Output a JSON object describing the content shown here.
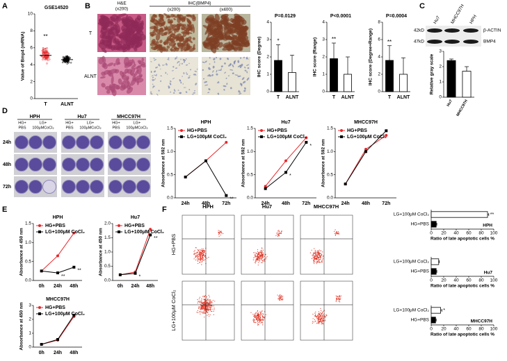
{
  "panel_labels": [
    "A",
    "B",
    "C",
    "D",
    "E",
    "F"
  ],
  "ihc": {
    "he_title": "H&E",
    "he_mag": "(x200)",
    "ihc_title": "IHC(BMP4)",
    "ihc_mags": [
      "(x200)",
      "(x400)"
    ],
    "rows": [
      "T",
      "ALNT"
    ]
  },
  "blot": {
    "lanes": [
      "Hu7",
      "MHCC97H",
      "HPH"
    ],
    "bands": [
      {
        "size": "42kD",
        "name": "β-ACTIN"
      },
      {
        "size": "47kD",
        "name": "BMP4"
      }
    ]
  },
  "crystal": {
    "cell_lines": [
      "HPH",
      "Hu7",
      "MHCC97H"
    ],
    "conditions": [
      [
        "HG+",
        "PBS"
      ],
      [
        "LG+",
        "100μMCoCl₂"
      ]
    ],
    "times": [
      "24h",
      "48h",
      "72h"
    ]
  },
  "flow": {
    "cell_lines": [
      "HPH",
      "Hu7",
      "MHCC97H"
    ],
    "rows": [
      "HG+PBS",
      "LG+100μM CoCl₂"
    ]
  },
  "chart_data": [
    {
      "type": "strip",
      "title": "GSE14520",
      "ylabel": "Value of Bmp4 (mRNA)",
      "categories": [
        "T",
        "ALNT"
      ],
      "values": [
        5.1,
        4.6
      ],
      "colors": [
        "#e8262a",
        "#000000"
      ],
      "significance": [
        "**",
        null
      ],
      "ylim": [
        0,
        10
      ],
      "yticks": [
        0,
        2,
        4,
        6,
        8,
        10
      ]
    },
    {
      "type": "bar",
      "title": "P=0.0129",
      "ylabel": "IHC score (Degree)",
      "categories": [
        "T",
        "ALNT"
      ],
      "values": [
        1.8,
        1.1
      ],
      "errors": [
        0.9,
        1.0
      ],
      "colors": [
        "#000000",
        "#ffffff"
      ],
      "significance": [
        "*",
        null
      ],
      "ylim": [
        0,
        4
      ],
      "yticks": [
        0,
        1,
        2,
        3,
        4
      ]
    },
    {
      "type": "bar",
      "title": "P<0.0001",
      "ylabel": "IHC score (Range)",
      "categories": [
        "T",
        "ALNT"
      ],
      "values": [
        1.9,
        1.0
      ],
      "errors": [
        0.9,
        1.0
      ],
      "colors": [
        "#000000",
        "#ffffff"
      ],
      "significance": [
        "**",
        null
      ],
      "ylim": [
        0,
        4
      ],
      "yticks": [
        0,
        1,
        2,
        3,
        4
      ]
    },
    {
      "type": "bar",
      "title": "P=0.0004",
      "ylabel": "IHC score (Degree+Range)",
      "categories": [
        "T",
        "ALNT"
      ],
      "values": [
        3.6,
        2.0
      ],
      "errors": [
        1.7,
        1.9
      ],
      "colors": [
        "#000000",
        "#ffffff"
      ],
      "significance": [
        "**",
        null
      ],
      "ylim": [
        0,
        8
      ],
      "yticks": [
        0,
        2,
        4,
        6,
        8
      ]
    },
    {
      "type": "bar",
      "ylabel": "Relative gray scale",
      "categories": [
        "Hu7",
        "MHCC97H"
      ],
      "values": [
        2.4,
        1.7
      ],
      "errors": [
        0.1,
        0.3
      ],
      "colors": [
        "#000000",
        "#ffffff"
      ],
      "ylim": [
        0,
        3
      ],
      "yticks": [
        0,
        1,
        2,
        3
      ]
    },
    {
      "type": "line",
      "title": "HPH",
      "ylabel": "Absorbance at 592 nm",
      "categories": [
        "24h",
        "48h",
        "72h"
      ],
      "ylim": [
        0,
        1.5
      ],
      "yticks": [
        {
          "value": 0,
          "label": "0.0"
        },
        0.5,
        {
          "value": 1,
          "label": "1.0"
        },
        1.5
      ],
      "series": [
        {
          "name": "HG+PBS",
          "color": "#e8262a",
          "marker": "circle",
          "values": [
            0.45,
            0.8,
            1.2
          ]
        },
        {
          "name": "LG+100μM CoCl₂",
          "color": "#000000",
          "marker": "square",
          "values": [
            0.45,
            0.8,
            0.05
          ],
          "significance": [
            null,
            null,
            "**"
          ]
        }
      ]
    },
    {
      "type": "line",
      "title": "Hu7",
      "ylabel": "Absorbance at 592 nm",
      "categories": [
        "24h",
        "48h",
        "72h"
      ],
      "ylim": [
        0,
        1.5
      ],
      "yticks": [
        {
          "value": 0,
          "label": "0.0"
        },
        0.5,
        {
          "value": 1,
          "label": "1.0"
        },
        1.5
      ],
      "series": [
        {
          "name": "HG+PBS",
          "color": "#e8262a",
          "marker": "circle",
          "values": [
            0.25,
            0.8,
            1.3
          ]
        },
        {
          "name": "LG+100μM CoCl₂",
          "color": "#000000",
          "marker": "square",
          "values": [
            0.2,
            0.55,
            1.2
          ],
          "significance": [
            null,
            "*",
            "*"
          ]
        }
      ]
    },
    {
      "type": "line",
      "title": "MHCC97H",
      "ylabel": "Absorbance at 592 nm",
      "categories": [
        "24h",
        "48h",
        "72h"
      ],
      "ylim": [
        0,
        1.5
      ],
      "yticks": [
        {
          "value": 0,
          "label": "0.0"
        },
        0.5,
        {
          "value": 1,
          "label": "1.0"
        },
        1.5
      ],
      "series": [
        {
          "name": "HG+PBS",
          "color": "#e8262a",
          "marker": "circle",
          "values": [
            0.3,
            1.05,
            1.35
          ]
        },
        {
          "name": "LG+100μM CoCl₂",
          "color": "#000000",
          "marker": "square",
          "values": [
            0.3,
            1.0,
            1.45
          ]
        }
      ]
    },
    {
      "type": "line",
      "title": "HPH",
      "ylabel": "Absorbance at 450 nm",
      "categories": [
        "0h",
        "24h",
        "48h"
      ],
      "ylim": [
        0,
        1.5
      ],
      "yticks": [
        {
          "value": 0,
          "label": "0.0"
        },
        0.5,
        {
          "value": 1,
          "label": "1.0"
        },
        1.5
      ],
      "series": [
        {
          "name": "HG+PBS",
          "color": "#e8262a",
          "marker": "circle",
          "values": [
            0.25,
            0.65,
            1.25
          ]
        },
        {
          "name": "LG+100μM CoCl₂",
          "color": "#000000",
          "marker": "square",
          "values": [
            0.25,
            0.2,
            0.35
          ],
          "significance": [
            null,
            "**",
            "**"
          ]
        }
      ]
    },
    {
      "type": "line",
      "title": "Hu7",
      "ylabel": "Absorbance at 450 nm",
      "categories": [
        "0h",
        "24h",
        "48h"
      ],
      "ylim": [
        0,
        2
      ],
      "yticks": [
        {
          "value": 0,
          "label": "0.0"
        },
        0.5,
        {
          "value": 1,
          "label": "1.0"
        },
        1.5,
        {
          "value": 2,
          "label": "2.0"
        }
      ],
      "series": [
        {
          "name": "HG+PBS",
          "color": "#e8262a",
          "marker": "circle",
          "values": [
            0.2,
            0.3,
            1.8
          ]
        },
        {
          "name": "LG+100μM CoCl₂",
          "color": "#000000",
          "marker": "square",
          "values": [
            0.2,
            0.25,
            1.6
          ],
          "significance": [
            null,
            "*",
            "**"
          ]
        }
      ]
    },
    {
      "type": "line",
      "title": "MHCC97H",
      "ylabel": "Absorbance at 450 nm",
      "categories": [
        "0h",
        "24h",
        "48h"
      ],
      "ylim": [
        0,
        3
      ],
      "yticks": [
        0,
        1,
        2,
        3
      ],
      "series": [
        {
          "name": "HG+PBS",
          "color": "#e8262a",
          "marker": "circle",
          "values": [
            0.2,
            0.5,
            2.2
          ]
        },
        {
          "name": "LG+100μM CoCl₂",
          "color": "#000000",
          "marker": "square",
          "values": [
            0.2,
            0.55,
            2.3
          ]
        }
      ]
    },
    {
      "type": "hbar",
      "title": "HPH",
      "xlabel": "Ratio of late apoptotic cells %",
      "categories": [
        "LG+100μM CoCl₂",
        "HG+PBS"
      ],
      "values": [
        90,
        8
      ],
      "errors": [
        2,
        1
      ],
      "colors": [
        "#ffffff",
        "#000000"
      ],
      "significance": [
        "**",
        null
      ],
      "xlim": [
        0,
        100
      ],
      "xticks": [
        0,
        20,
        40,
        60,
        80,
        100
      ]
    },
    {
      "type": "hbar",
      "title": "Hu7",
      "xlabel": "Ratio of late apoptotic cells %",
      "categories": [
        "LG+100μM CoCl₂",
        "HG+PBS"
      ],
      "values": [
        12,
        8
      ],
      "errors": [
        1,
        1
      ],
      "colors": [
        "#ffffff",
        "#000000"
      ],
      "xlim": [
        0,
        100
      ],
      "xticks": [
        0,
        20,
        40,
        60,
        80,
        100
      ]
    },
    {
      "type": "hbar",
      "title": "MHCC97H",
      "xlabel": "Ratio of late apoptotic cells %",
      "categories": [
        "LG+100μM CoCl₂",
        "HG+PBS"
      ],
      "values": [
        15,
        7
      ],
      "errors": [
        2,
        1
      ],
      "colors": [
        "#ffffff",
        "#000000"
      ],
      "significance": [
        "*",
        null
      ],
      "xlim": [
        0,
        100
      ],
      "xticks": [
        0,
        20,
        40,
        60,
        80,
        100
      ]
    }
  ]
}
